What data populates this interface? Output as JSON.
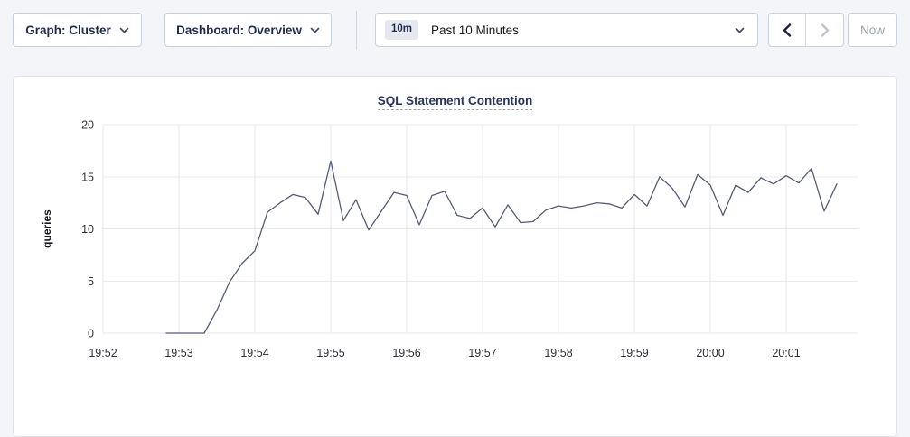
{
  "toolbar": {
    "graph_dropdown_label": "Graph: Cluster",
    "dashboard_dropdown_label": "Dashboard: Overview",
    "time_range": {
      "badge": "10m",
      "label": "Past 10 Minutes"
    },
    "now_button_label": "Now"
  },
  "chart_data": {
    "type": "line",
    "title": "SQL Statement Contention",
    "xlabel": "",
    "ylabel": "queries",
    "ylim": [
      0,
      20
    ],
    "yticks": [
      0,
      5,
      10,
      15,
      20
    ],
    "xticks": [
      "19:52",
      "19:53",
      "19:54",
      "19:55",
      "19:56",
      "19:57",
      "19:58",
      "19:59",
      "20:00",
      "20:01"
    ],
    "grid": true,
    "legend_position": "none",
    "series": [
      {
        "name": "SQL Statement Contention",
        "color": "#555b77",
        "points": [
          [
            "19:52:50",
            0
          ],
          [
            "19:53:00",
            0
          ],
          [
            "19:53:10",
            0
          ],
          [
            "19:53:20",
            0
          ],
          [
            "19:53:30",
            2.2
          ],
          [
            "19:53:40",
            4.9
          ],
          [
            "19:53:50",
            6.7
          ],
          [
            "19:54:00",
            7.9
          ],
          [
            "19:54:10",
            11.6
          ],
          [
            "19:54:20",
            12.5
          ],
          [
            "19:54:30",
            13.3
          ],
          [
            "19:54:40",
            13.0
          ],
          [
            "19:54:50",
            11.4
          ],
          [
            "19:55:00",
            16.5
          ],
          [
            "19:55:10",
            10.8
          ],
          [
            "19:55:20",
            12.8
          ],
          [
            "19:55:30",
            9.9
          ],
          [
            "19:55:40",
            11.7
          ],
          [
            "19:55:50",
            13.5
          ],
          [
            "19:56:00",
            13.2
          ],
          [
            "19:56:10",
            10.4
          ],
          [
            "19:56:20",
            13.2
          ],
          [
            "19:56:30",
            13.6
          ],
          [
            "19:56:40",
            11.3
          ],
          [
            "19:56:50",
            11.0
          ],
          [
            "19:57:00",
            12.0
          ],
          [
            "19:57:10",
            10.2
          ],
          [
            "19:57:20",
            12.3
          ],
          [
            "19:57:30",
            10.6
          ],
          [
            "19:57:40",
            10.7
          ],
          [
            "19:57:50",
            11.8
          ],
          [
            "19:58:00",
            12.2
          ],
          [
            "19:58:10",
            12.0
          ],
          [
            "19:58:20",
            12.2
          ],
          [
            "19:58:30",
            12.5
          ],
          [
            "19:58:40",
            12.4
          ],
          [
            "19:58:50",
            12.0
          ],
          [
            "19:59:00",
            13.3
          ],
          [
            "19:59:10",
            12.2
          ],
          [
            "19:59:20",
            15.0
          ],
          [
            "19:59:30",
            13.9
          ],
          [
            "19:59:40",
            12.1
          ],
          [
            "19:59:50",
            15.2
          ],
          [
            "20:00:00",
            14.2
          ],
          [
            "20:00:10",
            11.3
          ],
          [
            "20:00:20",
            14.2
          ],
          [
            "20:00:30",
            13.5
          ],
          [
            "20:00:40",
            14.9
          ],
          [
            "20:00:50",
            14.3
          ],
          [
            "20:01:00",
            15.1
          ],
          [
            "20:01:10",
            14.4
          ],
          [
            "20:01:20",
            15.8
          ],
          [
            "20:01:30",
            11.7
          ],
          [
            "20:01:40",
            14.3
          ]
        ]
      }
    ]
  },
  "colors": {
    "page_bg": "#f4f5f9",
    "card_bg": "#ffffff",
    "card_border": "#e0e3ea",
    "grid_line": "#e9eaec",
    "axis_text": "#2b2f36",
    "title_text": "#26355e",
    "series_line": "#555b77",
    "control_border": "#c9cfdc",
    "disabled_text": "#9aa2b2"
  }
}
